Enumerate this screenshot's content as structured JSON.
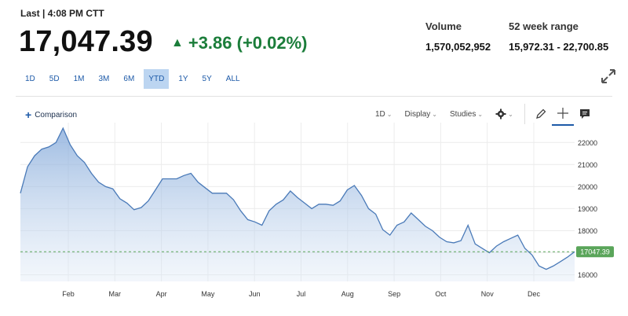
{
  "header": {
    "last_label": "Last | 4:08 PM CTT",
    "price": "17,047.39",
    "change": "+3.86 (+0.02%)",
    "change_color": "#1b7d3a"
  },
  "stats": {
    "volume_label": "Volume",
    "volume_value": "1,570,052,952",
    "range_label": "52 week range",
    "range_value": "15,972.31 - 22,700.85"
  },
  "range_tabs": [
    {
      "label": "1D",
      "active": false
    },
    {
      "label": "5D",
      "active": false
    },
    {
      "label": "1M",
      "active": false
    },
    {
      "label": "3M",
      "active": false
    },
    {
      "label": "6M",
      "active": false
    },
    {
      "label": "YTD",
      "active": true
    },
    {
      "label": "1Y",
      "active": false
    },
    {
      "label": "5Y",
      "active": false
    },
    {
      "label": "ALL",
      "active": false
    }
  ],
  "toolbar": {
    "comparison_label": "Comparison",
    "interval_label": "1D",
    "display_label": "Display",
    "studies_label": "Studies"
  },
  "icons": {
    "expand": "expand-icon",
    "gear": "gear-icon",
    "pencil": "pencil-icon",
    "crosshair": "crosshair-icon",
    "comment": "comment-icon"
  },
  "chart_data": {
    "type": "area",
    "x_labels": [
      "Feb",
      "Mar",
      "Apr",
      "May",
      "Jun",
      "Jul",
      "Aug",
      "Sep",
      "Oct",
      "Nov",
      "Dec"
    ],
    "y_ticks": [
      16000,
      17000,
      18000,
      19000,
      20000,
      21000,
      22000
    ],
    "ylim": [
      15700,
      22900
    ],
    "last_value_label": "17047.39",
    "last_value": 17047.39,
    "line_color": "#4a7ab8",
    "marker_color": "#5aa55a",
    "grid": true,
    "values": [
      19700,
      20900,
      21400,
      21700,
      21800,
      22000,
      22650,
      21900,
      21400,
      21100,
      20600,
      20200,
      20000,
      19900,
      19450,
      19250,
      18950,
      19050,
      19350,
      19850,
      20350,
      20350,
      20350,
      20500,
      20600,
      20200,
      19950,
      19700,
      19700,
      19700,
      19400,
      18900,
      18500,
      18400,
      18250,
      18900,
      19200,
      19400,
      19800,
      19500,
      19250,
      19000,
      19200,
      19200,
      19150,
      19350,
      19850,
      20050,
      19600,
      19000,
      18750,
      18050,
      17800,
      18250,
      18400,
      18800,
      18500,
      18200,
      18000,
      17700,
      17500,
      17450,
      17550,
      18250,
      17400,
      17200,
      17000,
      17300,
      17500,
      17650,
      17800,
      17200,
      16900,
      16400,
      16250,
      16400,
      16600,
      16800,
      17047.39
    ]
  }
}
